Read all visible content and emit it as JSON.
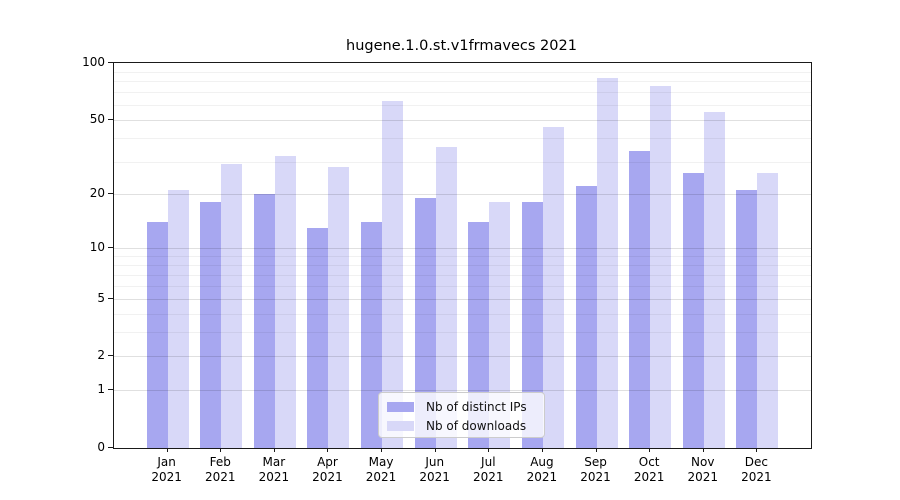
{
  "title": "hugene.1.0.st.v1frmavecs 2021",
  "chart_data": {
    "type": "bar",
    "title": "hugene.1.0.st.v1frmavecs 2021",
    "categories": [
      "Jan",
      "Feb",
      "Mar",
      "Apr",
      "May",
      "Jun",
      "Jul",
      "Aug",
      "Sep",
      "Oct",
      "Nov",
      "Dec"
    ],
    "year_label": "2021",
    "series": [
      {
        "name": "Nb of distinct IPs",
        "color": "#a7a7f0",
        "values": [
          14,
          18,
          20,
          13,
          14,
          19,
          14,
          18,
          22,
          34,
          26,
          21
        ]
      },
      {
        "name": "Nb of downloads",
        "color": "#d8d8f8",
        "values": [
          21,
          29,
          32,
          28,
          63,
          36,
          18,
          46,
          83,
          76,
          55,
          26
        ]
      }
    ],
    "xlabel": "",
    "ylabel": "",
    "scale": "log1p",
    "ylim": [
      0,
      100
    ],
    "y_ticks": [
      0,
      1,
      2,
      5,
      10,
      20,
      50,
      100
    ],
    "y_minor_gridlines": [
      3,
      4,
      6,
      7,
      8,
      9,
      30,
      40,
      60,
      70,
      80,
      90
    ],
    "grid": "horizontal",
    "legend_position": "lower-center-inside"
  }
}
